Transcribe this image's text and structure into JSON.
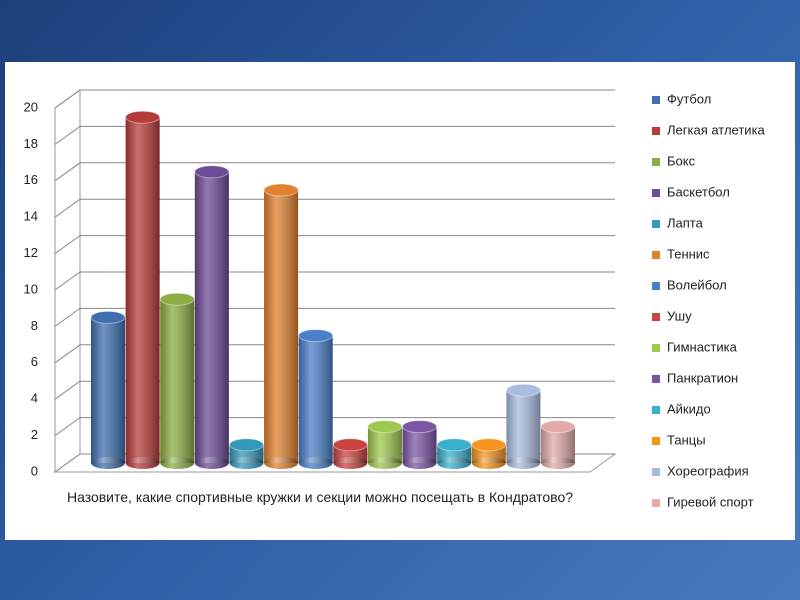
{
  "chart_data": {
    "type": "bar3d",
    "x_label": "Назовите, какие спортивные кружки и секции можно посещать в Кондратово?",
    "ylim": [
      0,
      20
    ],
    "yticks": [
      0,
      2,
      4,
      6,
      8,
      10,
      12,
      14,
      16,
      18,
      20
    ],
    "grid": true,
    "legend": "right",
    "series": [
      {
        "name": "Футбол",
        "color": "#3f6fb0",
        "values": [
          8
        ]
      },
      {
        "name": "Легкая атлетика",
        "color": "#b53c3a",
        "values": [
          19
        ]
      },
      {
        "name": "Бокс",
        "color": "#8cae44",
        "values": [
          9
        ]
      },
      {
        "name": "Баскетбол",
        "color": "#6e4c97",
        "values": [
          16
        ]
      },
      {
        "name": "Лапта",
        "color": "#3499b8",
        "values": [
          1
        ]
      },
      {
        "name": "Теннис",
        "color": "#e0812e",
        "values": [
          15
        ]
      },
      {
        "name": "Волейбол",
        "color": "#4a7fc9",
        "values": [
          7
        ]
      },
      {
        "name": "Ушу",
        "color": "#c94340",
        "values": [
          1
        ]
      },
      {
        "name": "Гимнастика",
        "color": "#9fc84f",
        "values": [
          2
        ]
      },
      {
        "name": "Панкратион",
        "color": "#7d55a6",
        "values": [
          2
        ]
      },
      {
        "name": "Айкидо",
        "color": "#3ab0cc",
        "values": [
          1
        ]
      },
      {
        "name": "Танцы",
        "color": "#f7941d",
        "values": [
          1
        ]
      },
      {
        "name": "Хореография",
        "color": "#a9bde0",
        "values": [
          4
        ]
      },
      {
        "name": "Гиревой спорт",
        "color": "#e3aaa8",
        "values": [
          2
        ]
      }
    ]
  }
}
